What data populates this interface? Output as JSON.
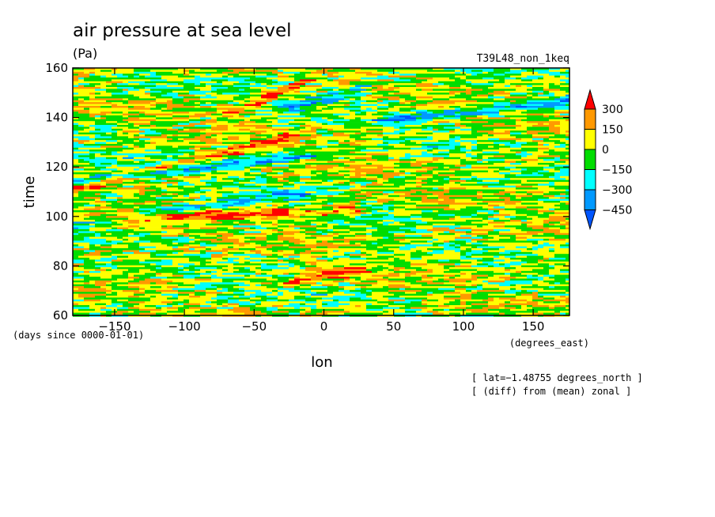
{
  "chart_data": {
    "type": "heatmap",
    "title": "air pressure at sea level",
    "subtitle": "(Pa)",
    "run_label": "T39L48_non_1keq",
    "xlabel": "lon",
    "ylabel": "time",
    "x_units": "(degrees_east)",
    "y_units": "(days since 0000-01-01)",
    "xlim": [
      -180,
      176
    ],
    "ylim": [
      60,
      160
    ],
    "x_ticks": [
      -150,
      -100,
      -50,
      0,
      50,
      100,
      150
    ],
    "y_ticks": [
      60,
      80,
      100,
      120,
      140,
      160
    ],
    "x_tick_labels": [
      "−150",
      "−100",
      "−50",
      "0",
      "50",
      "100",
      "150"
    ],
    "y_tick_labels": [
      "60",
      "80",
      "100",
      "120",
      "140",
      "160"
    ],
    "notes": [
      "[ lat=−1.48755 degrees_north ]",
      "[ (diff) from (mean) zonal ]"
    ],
    "colorbar": {
      "levels": [
        300,
        150,
        0,
        -150,
        -300,
        -450
      ],
      "level_labels": [
        "300",
        "150",
        "0",
        "−150",
        "−300",
        "−450"
      ],
      "colors": [
        "#ff0000",
        "#ff9900",
        "#ffff00",
        "#00dd00",
        "#00ffff",
        "#0099ff",
        "#0055ff"
      ]
    },
    "features": [
      {
        "kind": "positive band",
        "from": [
          -180,
          111
        ],
        "to": [
          -30,
          131
        ]
      },
      {
        "kind": "positive band",
        "from": [
          -60,
          143
        ],
        "to": [
          -20,
          153
        ]
      },
      {
        "kind": "negative band",
        "from": [
          -180,
          97
        ],
        "to": [
          -20,
          109
        ]
      },
      {
        "kind": "negative band",
        "from": [
          -20,
          145
        ],
        "to": [
          20,
          150
        ]
      },
      {
        "kind": "negative band",
        "from": [
          50,
          139
        ],
        "to": [
          170,
          146
        ]
      },
      {
        "kind": "positive band",
        "from": [
          -180,
          99
        ],
        "to": [
          20,
          102
        ]
      },
      {
        "kind": "negative band",
        "from": [
          -180,
          114
        ],
        "to": [
          -20,
          124
        ]
      },
      {
        "kind": "positive band",
        "from": [
          -20,
          74
        ],
        "to": [
          20,
          78
        ]
      }
    ]
  }
}
